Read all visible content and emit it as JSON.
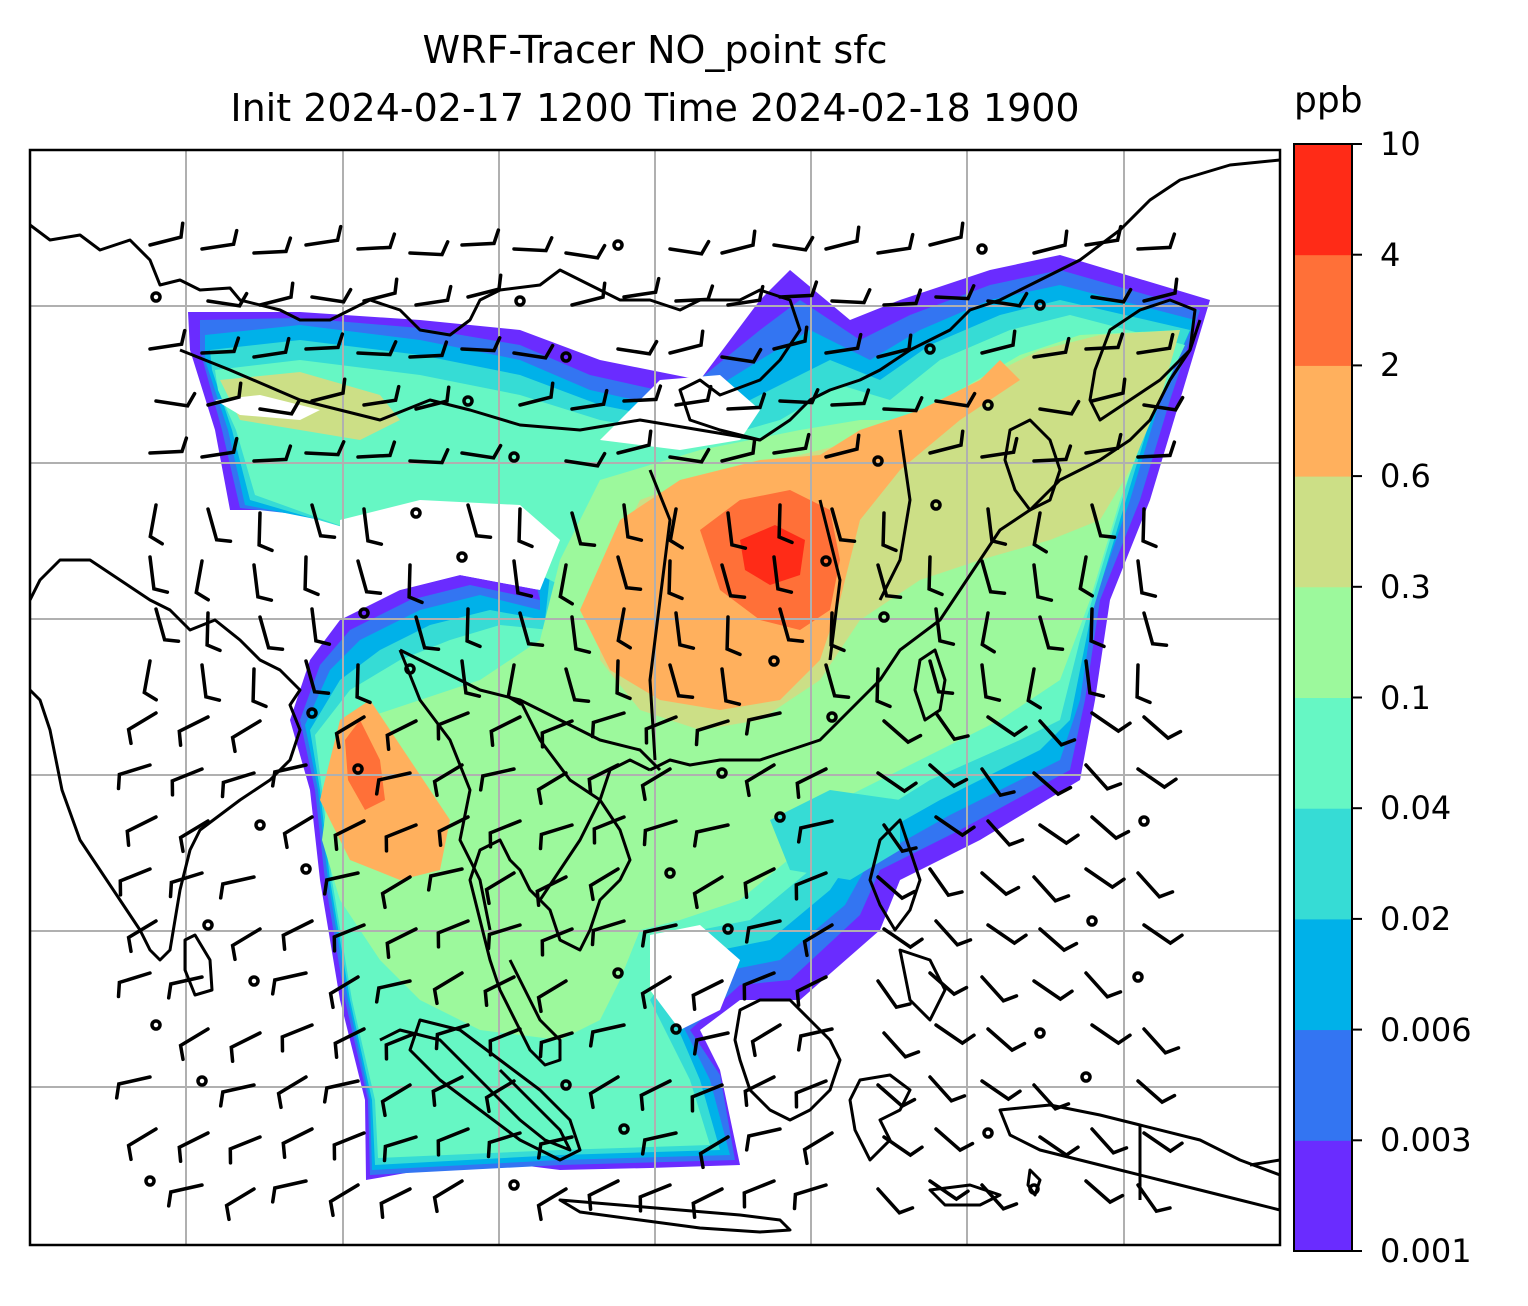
{
  "title": {
    "line1": "WRF-Tracer NO_point sfc",
    "line2": "Init 2024-02-17 1200 Time 2024-02-18 1900"
  },
  "colorbar": {
    "unit": "ppb",
    "levels": [
      "0.001",
      "0.003",
      "0.006",
      "0.02",
      "0.04",
      "0.1",
      "0.3",
      "0.6",
      "2",
      "4",
      "10"
    ],
    "colors": [
      "#6a2cff",
      "#3375f2",
      "#00b1e9",
      "#36dcd5",
      "#66f7c4",
      "#9cf99c",
      "#ccdf86",
      "#ffb05d",
      "#ff7038",
      "#ff2b17"
    ]
  },
  "map": {
    "gridline_color": "#b0b0b0",
    "coastline_color": "#000000",
    "wind_barb_color": "#000000",
    "field_name": "NO_point"
  }
}
